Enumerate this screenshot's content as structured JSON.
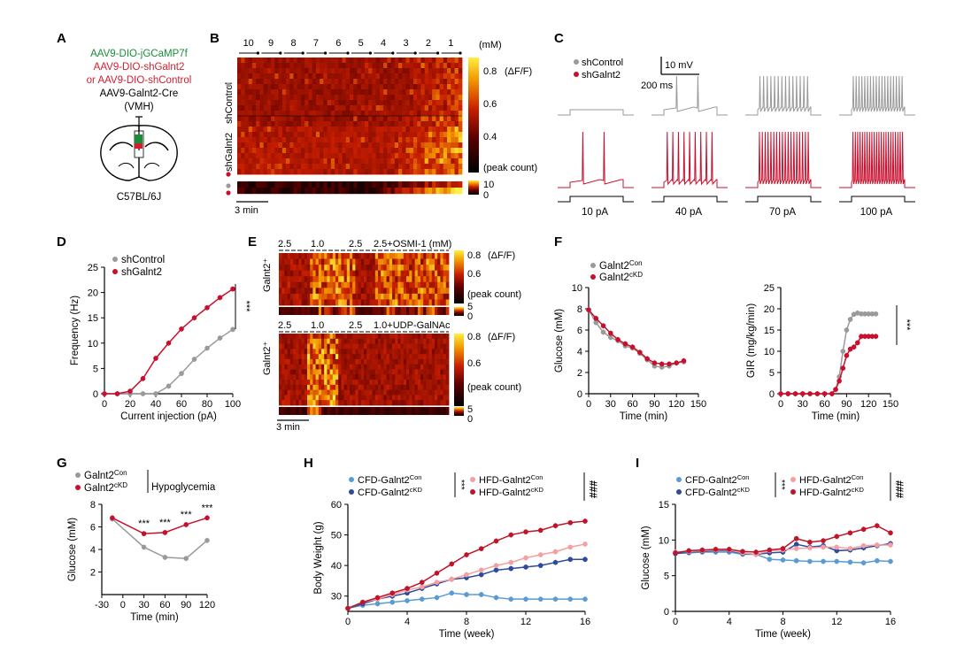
{
  "figure": {
    "panel_letters": [
      "A",
      "B",
      "C",
      "D",
      "E",
      "F",
      "G",
      "H",
      "I"
    ],
    "colors": {
      "control": "#9a9a9a",
      "kd": "#c8102e",
      "cfd_con": "#5b9bd5",
      "cfd_kd": "#2e4a9e",
      "hfd_con": "#f4a0a0",
      "hfd_kd": "#c0142a",
      "green": "#1a8c3a",
      "red_text": "#d11f2f"
    }
  },
  "panelA": {
    "line1": "AAV9-DIO-jGCaMP7f",
    "line2": "AAV9-DIO-shGalnt2",
    "line3": "or AAV9-DIO-shControl",
    "line4": "AAV9-Galnt2-Cre",
    "line5": "(VMH)",
    "strain": "C57BL/6J"
  },
  "panelB": {
    "conc_labels": [
      "10",
      "9",
      "8",
      "7",
      "6",
      "5",
      "4",
      "3",
      "2",
      "1"
    ],
    "unit": "(mM)",
    "ylabel_top": "shControl",
    "ylabel_bottom": "shGalnt2",
    "cbar_ticks": [
      "0.8",
      "0.6",
      "0.4"
    ],
    "cbar_unit": "(ΔF/F)",
    "peak_label": "(peak count)",
    "peak_ticks": [
      "10",
      "0"
    ],
    "scalebar": "3 min"
  },
  "panelC": {
    "legend": [
      "shControl",
      "shGalnt2"
    ],
    "scale_v": "10 mV",
    "scale_t": "200 ms",
    "currents": [
      "10 pA",
      "40 pA",
      "70 pA",
      "100 pA"
    ],
    "spikes_control": [
      0,
      2,
      14,
      18
    ],
    "spikes_kd": [
      2,
      9,
      18,
      22
    ]
  },
  "panelE": {
    "top_labels": [
      "2.5",
      "1.0",
      "2.5",
      "2.5+OSMI-1 (mM)"
    ],
    "bottom_labels": [
      "2.5",
      "1.0",
      "2.5",
      "1.0+UDP-GalNAc"
    ],
    "ylabel": "Galnt2⁺",
    "cbar_ticks": [
      "0.8",
      "0.6"
    ],
    "cbar_unit": "(ΔF/F)",
    "peak_label": "(peak count)",
    "peak_ticks": [
      "5",
      "0"
    ],
    "scalebar": "3 min"
  },
  "chart_data": [
    {
      "panel": "D",
      "type": "line",
      "xlabel": "Current injection (pA)",
      "ylabel": "Frequency (Hz)",
      "xlim": [
        0,
        100
      ],
      "ylim": [
        0,
        25
      ],
      "xticks": [
        "0",
        "20",
        "40",
        "60",
        "80",
        "100"
      ],
      "yticks": [
        "0",
        "5",
        "10",
        "15",
        "20",
        "25"
      ],
      "x": [
        0,
        10,
        20,
        30,
        40,
        50,
        60,
        70,
        80,
        90,
        100
      ],
      "series": [
        {
          "name": "shControl",
          "values": [
            0,
            0,
            0,
            0,
            0,
            1.5,
            4,
            6.8,
            9,
            11,
            12.7
          ]
        },
        {
          "name": "shGalnt2",
          "values": [
            0,
            0,
            0.5,
            3,
            7,
            10,
            12.8,
            15,
            17,
            19,
            20.7
          ]
        }
      ],
      "significance": "***"
    },
    {
      "panel": "F-left",
      "type": "line",
      "xlabel": "Time (min)",
      "ylabel": "Glucose (mM)",
      "xlim": [
        0,
        150
      ],
      "ylim": [
        0,
        10
      ],
      "xticks": [
        "0",
        "30",
        "60",
        "90",
        "120",
        "150"
      ],
      "yticks": [
        "0",
        "2",
        "4",
        "6",
        "8",
        "10"
      ],
      "x": [
        0,
        10,
        20,
        30,
        40,
        50,
        60,
        70,
        80,
        90,
        100,
        110,
        120,
        130
      ],
      "series": [
        {
          "name": "Galnt2Con",
          "sup": "Con",
          "values": [
            7.9,
            6.7,
            5.8,
            5.3,
            5.0,
            4.5,
            4.3,
            3.8,
            3.2,
            2.6,
            2.5,
            2.6,
            2.9,
            3.0
          ]
        },
        {
          "name": "Galnt2cKD",
          "sup": "cKD",
          "values": [
            7.9,
            7.1,
            6.4,
            5.7,
            5.1,
            4.7,
            4.4,
            3.9,
            3.3,
            2.9,
            2.8,
            2.8,
            2.9,
            3.1
          ]
        }
      ]
    },
    {
      "panel": "F-right",
      "type": "line",
      "xlabel": "Time (min)",
      "ylabel": "GIR (mg/kg/min)",
      "xlim": [
        0,
        150
      ],
      "ylim": [
        0,
        25
      ],
      "xticks": [
        "0",
        "30",
        "60",
        "90",
        "120",
        "150"
      ],
      "yticks": [
        "0",
        "5",
        "10",
        "15",
        "20",
        "25"
      ],
      "x": [
        0,
        10,
        20,
        30,
        40,
        50,
        60,
        70,
        75,
        80,
        85,
        90,
        95,
        100,
        105,
        110,
        115,
        120,
        125,
        130
      ],
      "series": [
        {
          "name": "Galnt2Con",
          "values": [
            0,
            0,
            0,
            0,
            0,
            0,
            0,
            0,
            1,
            4,
            10,
            15,
            17.5,
            18.7,
            19,
            18.8,
            18.8,
            18.8,
            18.8,
            18.8
          ]
        },
        {
          "name": "Galnt2cKD",
          "values": [
            0,
            0,
            0,
            0,
            0,
            0,
            0,
            0,
            1,
            3,
            6,
            9,
            10.5,
            11,
            12,
            13.5,
            13.5,
            13.5,
            13.5,
            13.5
          ]
        }
      ],
      "significance": "***"
    },
    {
      "panel": "G",
      "type": "line",
      "xlabel": "Time (min)",
      "ylabel": "Glucose (mM)",
      "xlim": [
        -30,
        120
      ],
      "ylim": [
        0,
        8
      ],
      "xticks": [
        "-30",
        "0",
        "30",
        "60",
        "90",
        "120"
      ],
      "yticks": [
        "2",
        "4",
        "6",
        "8"
      ],
      "legend_note": "Hypoglycemia",
      "x": [
        -15,
        30,
        60,
        90,
        120
      ],
      "series": [
        {
          "name": "Galnt2Con",
          "sup": "Con",
          "values": [
            6.7,
            4.2,
            3.3,
            3.2,
            4.8
          ]
        },
        {
          "name": "Galnt2cKD",
          "sup": "cKD",
          "values": [
            6.8,
            5.4,
            5.5,
            6.2,
            6.8
          ]
        }
      ],
      "annotations": [
        "***",
        "***",
        "***",
        "***"
      ]
    },
    {
      "panel": "H",
      "type": "line",
      "xlabel": "Time (week)",
      "ylabel": "Body Weight (g)",
      "xlim": [
        0,
        16
      ],
      "ylim": [
        25,
        60
      ],
      "xticks": [
        "0",
        "4",
        "8",
        "12",
        "16"
      ],
      "yticks": [
        "30",
        "40",
        "50",
        "60"
      ],
      "x": [
        0,
        1,
        2,
        3,
        4,
        5,
        6,
        7,
        8,
        9,
        10,
        11,
        12,
        13,
        14,
        15,
        16
      ],
      "series": [
        {
          "name": "CFD-Galnt2Con",
          "values": [
            26,
            27,
            27.5,
            28,
            28.5,
            29,
            29.5,
            31,
            30.5,
            30.5,
            29.5,
            29,
            29,
            29,
            29,
            29,
            29
          ]
        },
        {
          "name": "CFD-Galnt2cKD",
          "values": [
            26,
            27.5,
            29,
            30,
            31,
            32.5,
            34,
            35.5,
            36,
            37,
            38.5,
            39,
            39.5,
            40,
            41,
            42,
            42
          ]
        },
        {
          "name": "HFD-Galnt2Con",
          "values": [
            26,
            28,
            29,
            30.5,
            32,
            33,
            34.5,
            35.5,
            37,
            38.5,
            40,
            41,
            42.5,
            43.5,
            44.5,
            46,
            47
          ]
        },
        {
          "name": "HFD-Galnt2cKD",
          "values": [
            26,
            28,
            29.5,
            31,
            32.5,
            34.5,
            37.5,
            40.5,
            43.5,
            45.5,
            48,
            50,
            51,
            51.5,
            53,
            54,
            54.5
          ]
        }
      ],
      "significance": [
        "***",
        "###"
      ]
    },
    {
      "panel": "I",
      "type": "line",
      "xlabel": "Time (week)",
      "ylabel": "Glucose (mM)",
      "xlim": [
        0,
        16
      ],
      "ylim": [
        0,
        15
      ],
      "xticks": [
        "0",
        "4",
        "8",
        "12",
        "16"
      ],
      "yticks": [
        "0",
        "5",
        "10",
        "15"
      ],
      "x": [
        0,
        1,
        2,
        3,
        4,
        5,
        6,
        7,
        8,
        9,
        10,
        11,
        12,
        13,
        14,
        15,
        16
      ],
      "series": [
        {
          "name": "CFD-Galnt2Con",
          "values": [
            8.1,
            8.2,
            8.3,
            8.3,
            8.3,
            8.0,
            8.0,
            7.3,
            7.2,
            7.1,
            7.0,
            7.0,
            7.0,
            6.9,
            6.8,
            7.1,
            7.0
          ]
        },
        {
          "name": "CFD-Galnt2cKD",
          "values": [
            8.1,
            8.3,
            8.4,
            8.5,
            8.5,
            8.1,
            8.0,
            8.2,
            8.3,
            9.4,
            9.0,
            9.2,
            8.5,
            8.6,
            8.9,
            9.2,
            9.5
          ]
        },
        {
          "name": "HFD-Galnt2Con",
          "values": [
            8.3,
            8.4,
            8.5,
            8.6,
            8.6,
            8.2,
            8.0,
            8.5,
            8.6,
            8.8,
            8.9,
            9.0,
            9.0,
            8.8,
            9.2,
            9.3,
            9.3
          ]
        },
        {
          "name": "HFD-Galnt2cKD",
          "values": [
            8.2,
            8.5,
            8.6,
            8.7,
            8.7,
            8.4,
            8.3,
            8.6,
            8.8,
            10.2,
            9.7,
            9.9,
            10.5,
            11.0,
            11.5,
            12.0,
            11.0
          ]
        }
      ],
      "significance": [
        "***",
        "###"
      ]
    }
  ]
}
